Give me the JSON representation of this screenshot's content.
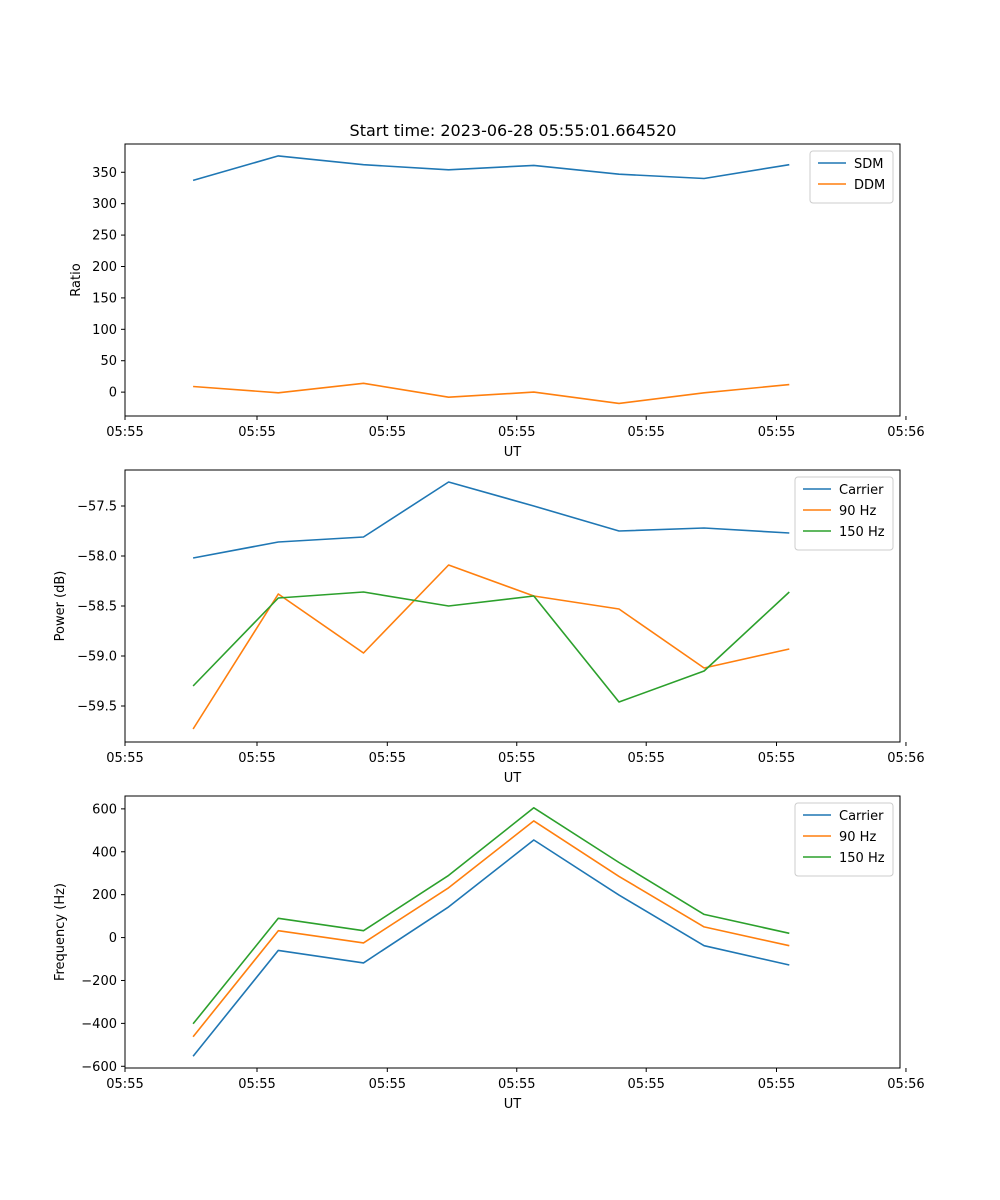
{
  "title": "Start time: 2023-06-28 05:55:01.664520",
  "chart_data": [
    {
      "type": "line",
      "xlabel": "UT",
      "ylabel": "Ratio",
      "x": [
        1,
        2,
        3,
        4,
        5,
        6,
        7,
        8
      ],
      "xlim": [
        0.2,
        9.3
      ],
      "x_ticks": [
        {
          "pos": 0.2,
          "label": "05:55"
        },
        {
          "pos": 1.75,
          "label": "05:55"
        },
        {
          "pos": 3.28,
          "label": "05:55"
        },
        {
          "pos": 4.8,
          "label": "05:55"
        },
        {
          "pos": 6.32,
          "label": "05:55"
        },
        {
          "pos": 7.85,
          "label": "05:55"
        },
        {
          "pos": 9.37,
          "label": "05:56"
        }
      ],
      "ylim": [
        -38,
        395
      ],
      "y_ticks": [
        0,
        50,
        100,
        150,
        200,
        250,
        300,
        350
      ],
      "y_tick_labels": [
        "0",
        "50",
        "100",
        "150",
        "200",
        "250",
        "300",
        "350"
      ],
      "legend_position": "top-right",
      "series": [
        {
          "name": "SDM",
          "color": "#1f77b4",
          "values": [
            337,
            376,
            362,
            354,
            361,
            347,
            340,
            362
          ]
        },
        {
          "name": "DDM",
          "color": "#ff7f0e",
          "values": [
            9,
            -1,
            14,
            -8,
            0,
            -18,
            -1,
            12
          ]
        }
      ]
    },
    {
      "type": "line",
      "xlabel": "UT",
      "ylabel": "Power (dB)",
      "x": [
        1,
        2,
        3,
        4,
        5,
        6,
        7,
        8
      ],
      "xlim": [
        0.2,
        9.3
      ],
      "x_ticks": [
        {
          "pos": 0.2,
          "label": "05:55"
        },
        {
          "pos": 1.75,
          "label": "05:55"
        },
        {
          "pos": 3.28,
          "label": "05:55"
        },
        {
          "pos": 4.8,
          "label": "05:55"
        },
        {
          "pos": 6.32,
          "label": "05:55"
        },
        {
          "pos": 7.85,
          "label": "05:55"
        },
        {
          "pos": 9.37,
          "label": "05:56"
        }
      ],
      "ylim": [
        -59.86,
        -57.14
      ],
      "y_ticks": [
        -59.5,
        -59.0,
        -58.5,
        -58.0,
        -57.5
      ],
      "y_tick_labels": [
        "−59.5",
        "−59.0",
        "−58.5",
        "−58.0",
        "−57.5"
      ],
      "legend_position": "top-right",
      "series": [
        {
          "name": "Carrier",
          "color": "#1f77b4",
          "values": [
            -58.02,
            -57.86,
            -57.81,
            -57.26,
            -57.5,
            -57.75,
            -57.72,
            -57.77
          ]
        },
        {
          "name": "90 Hz",
          "color": "#ff7f0e",
          "values": [
            -59.73,
            -58.38,
            -58.97,
            -58.09,
            -58.4,
            -58.53,
            -59.12,
            -58.93
          ]
        },
        {
          "name": "150 Hz",
          "color": "#2ca02c",
          "values": [
            -59.3,
            -58.42,
            -58.36,
            -58.5,
            -58.4,
            -59.46,
            -59.15,
            -58.36
          ]
        }
      ]
    },
    {
      "type": "line",
      "xlabel": "UT",
      "ylabel": "Frequency (Hz)",
      "x": [
        1,
        2,
        3,
        4,
        5,
        6,
        7,
        8
      ],
      "xlim": [
        0.2,
        9.3
      ],
      "x_ticks": [
        {
          "pos": 0.2,
          "label": "05:55"
        },
        {
          "pos": 1.75,
          "label": "05:55"
        },
        {
          "pos": 3.28,
          "label": "05:55"
        },
        {
          "pos": 4.8,
          "label": "05:55"
        },
        {
          "pos": 6.32,
          "label": "05:55"
        },
        {
          "pos": 7.85,
          "label": "05:55"
        },
        {
          "pos": 9.37,
          "label": "05:56"
        }
      ],
      "ylim": [
        -608,
        660
      ],
      "y_ticks": [
        -600,
        -400,
        -200,
        0,
        200,
        400,
        600
      ],
      "y_tick_labels": [
        "−600",
        "−400",
        "−200",
        "0",
        "200",
        "400",
        "600"
      ],
      "legend_position": "top-right",
      "series": [
        {
          "name": "Carrier",
          "color": "#1f77b4",
          "values": [
            -553,
            -60,
            -118,
            143,
            455,
            198,
            -38,
            -128
          ]
        },
        {
          "name": "90 Hz",
          "color": "#ff7f0e",
          "values": [
            -462,
            32,
            -25,
            232,
            544,
            285,
            50,
            -38
          ]
        },
        {
          "name": "150 Hz",
          "color": "#2ca02c",
          "values": [
            -402,
            90,
            32,
            290,
            605,
            350,
            108,
            20
          ]
        }
      ]
    }
  ]
}
